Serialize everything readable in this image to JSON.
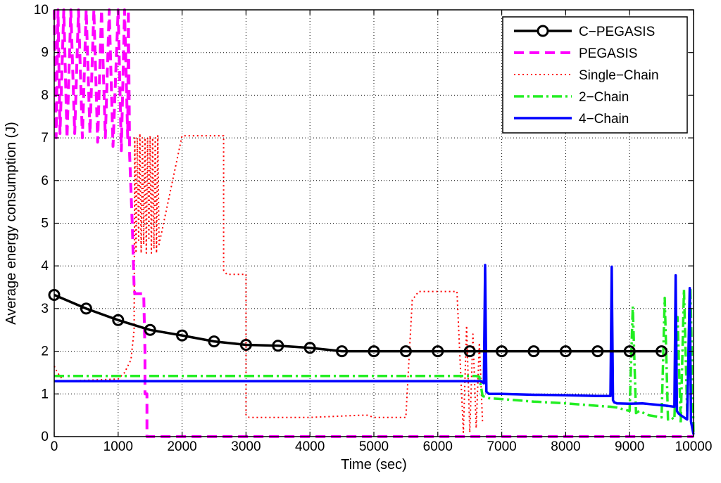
{
  "chart_data": {
    "type": "line",
    "xlabel": "Time (sec)",
    "ylabel": "Average energy consumption (J)",
    "xlim": [
      0,
      10000
    ],
    "ylim": [
      0,
      10
    ],
    "xticks": [
      0,
      1000,
      2000,
      3000,
      4000,
      5000,
      6000,
      7000,
      8000,
      9000,
      10000
    ],
    "yticks": [
      0,
      1,
      2,
      3,
      4,
      5,
      6,
      7,
      8,
      9,
      10
    ],
    "xtick_labels": [
      "0",
      "1000",
      "2000",
      "3000",
      "4000",
      "5000",
      "6000",
      "7000",
      "8000",
      "9000",
      "10000"
    ],
    "ytick_labels": [
      "0",
      "1",
      "2",
      "3",
      "4",
      "5",
      "6",
      "7",
      "8",
      "9",
      "10"
    ],
    "grid": true,
    "legend_position": "top-right",
    "series": [
      {
        "name": "C−PEGASIS",
        "color": "#000000",
        "style": "solid",
        "marker": "circle",
        "x": [
          0,
          500,
          1000,
          1500,
          2000,
          2500,
          3000,
          3500,
          4000,
          4500,
          5000,
          5500,
          6000,
          6500,
          7000,
          7500,
          8000,
          8500,
          9000,
          9500
        ],
        "y": [
          3.32,
          3.0,
          2.73,
          2.5,
          2.37,
          2.23,
          2.15,
          2.13,
          2.08,
          2.0,
          2.0,
          2.0,
          2.0,
          2.0,
          2.0,
          2.0,
          2.0,
          2.0,
          2.0,
          2.0
        ]
      },
      {
        "name": "PEGASIS",
        "color": "#ff00ff",
        "style": "dashed",
        "x": [
          0,
          30,
          60,
          90,
          150,
          200,
          260,
          320,
          380,
          440,
          500,
          560,
          620,
          680,
          740,
          800,
          860,
          920,
          1000,
          1050,
          1100,
          1150,
          1160,
          1180,
          1220,
          1250,
          1260,
          1400,
          1420,
          1420,
          1450,
          1450,
          10000
        ],
        "y": [
          10,
          7.0,
          10,
          7.1,
          10,
          7.0,
          10,
          7.1,
          10,
          7.0,
          10,
          7.1,
          10,
          6.9,
          10,
          7.0,
          10,
          6.8,
          10,
          6.7,
          10,
          7.0,
          10,
          6.6,
          5.0,
          3.5,
          3.35,
          3.35,
          2.0,
          1.0,
          1.0,
          0,
          0
        ]
      },
      {
        "name": "Single−Chain",
        "color": "#ff0000",
        "style": "dotted",
        "x": [
          0,
          50,
          100,
          150,
          1000,
          1100,
          1200,
          1250,
          1260,
          1280,
          1300,
          1320,
          1340,
          1360,
          1380,
          1400,
          1420,
          1440,
          1460,
          1480,
          1500,
          1520,
          1540,
          1560,
          1580,
          1600,
          1620,
          1640,
          2000,
          2650,
          2650,
          2700,
          3000,
          3000,
          3050,
          4000,
          4800,
          4900,
          5000,
          5100,
          5500,
          5600,
          5700,
          6300,
          6400,
          6450,
          6500,
          6550,
          6600,
          6650,
          6700
        ],
        "y": [
          1.65,
          1.5,
          1.4,
          1.3,
          1.35,
          1.5,
          1.8,
          2.5,
          7.0,
          4.3,
          7.0,
          4.6,
          7.1,
          4.3,
          7.0,
          4.5,
          7.0,
          4.3,
          7.0,
          4.6,
          7.05,
          4.3,
          7.0,
          4.4,
          7.0,
          4.3,
          7.05,
          4.5,
          7.05,
          7.05,
          3.9,
          3.8,
          3.8,
          0.5,
          0.45,
          0.45,
          0.5,
          0.5,
          0.45,
          0.45,
          0.45,
          3.2,
          3.4,
          3.4,
          0.1,
          2.6,
          0.1,
          2.4,
          0.2,
          2.2,
          0.3
        ]
      },
      {
        "name": "2−Chain",
        "color": "#22ee22",
        "style": "dashdot",
        "x": [
          0,
          6600,
          6650,
          6700,
          6800,
          7000,
          7500,
          8000,
          8500,
          8700,
          8800,
          9000,
          9050,
          9100,
          9150,
          9300,
          9500,
          9550,
          9600,
          9650,
          9700,
          9750,
          9800,
          9850,
          9900,
          9950,
          10000
        ],
        "y": [
          1.42,
          1.42,
          1.4,
          0.95,
          0.9,
          0.88,
          0.82,
          0.78,
          0.72,
          0.7,
          0.68,
          0.6,
          3.05,
          0.55,
          0.6,
          0.5,
          0.45,
          3.25,
          0.4,
          0.45,
          0.4,
          2.8,
          0.3,
          3.45,
          0.6,
          3.5,
          0.05
        ]
      },
      {
        "name": "4−Chain",
        "color": "#0000ff",
        "style": "solid",
        "x": [
          0,
          6620,
          6680,
          6720,
          6740,
          6760,
          6800,
          7000,
          7500,
          8000,
          8500,
          8700,
          8720,
          8740,
          8760,
          8800,
          9000,
          9200,
          9400,
          9600,
          9700,
          9720,
          9740,
          9760,
          9800,
          9900,
          9940,
          9960,
          9980,
          10000
        ],
        "y": [
          1.3,
          1.3,
          1.3,
          1.25,
          4.02,
          1.05,
          1.0,
          1.0,
          0.98,
          0.97,
          0.95,
          0.95,
          3.98,
          0.85,
          0.8,
          0.78,
          0.77,
          0.78,
          0.75,
          0.72,
          0.7,
          3.78,
          0.6,
          0.55,
          0.5,
          0.4,
          3.48,
          0.35,
          0.2,
          0.05
        ]
      }
    ]
  }
}
